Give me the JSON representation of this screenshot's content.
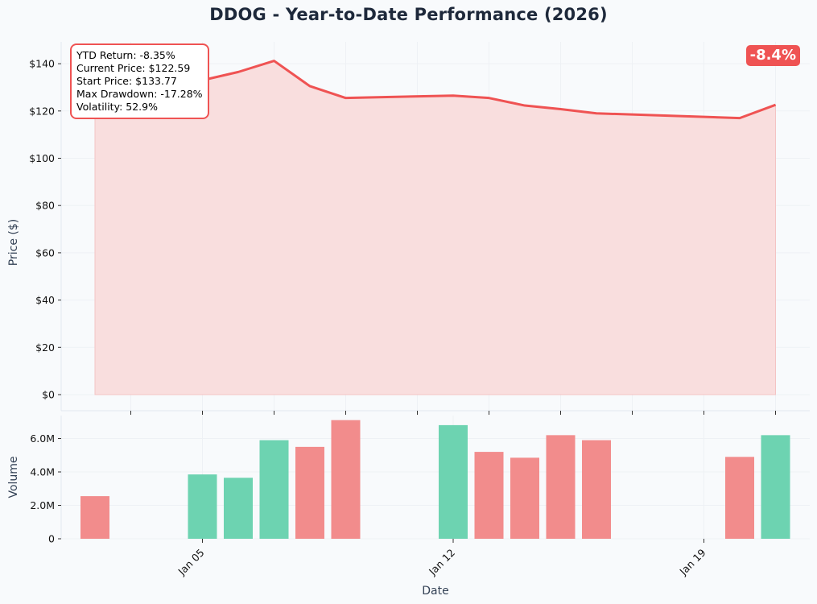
{
  "title": "DDOG - Year-to-Date Performance (2026)",
  "badge": "-8.4%",
  "stats": [
    "YTD Return: -8.35%",
    "Current Price: $122.59",
    "Start Price: $133.77",
    "Max Drawdown: -17.28%",
    "Volatility: 52.9%"
  ],
  "colors": {
    "price_line": "#ef5353",
    "price_fill": "#f9dede",
    "volume_up": "#6dd3b1",
    "volume_down": "#f28c8c",
    "title": "#1e293b",
    "background": "#f8fafc"
  },
  "chart_data": [
    {
      "type": "area",
      "name": "price",
      "x": [
        "2026-01-02",
        "2026-01-05",
        "2026-01-06",
        "2026-01-07",
        "2026-01-08",
        "2026-01-09",
        "2026-01-12",
        "2026-01-13",
        "2026-01-14",
        "2026-01-15",
        "2026-01-16",
        "2026-01-20",
        "2026-01-21"
      ],
      "values": [
        133.77,
        133.0,
        136.5,
        141.2,
        130.5,
        125.5,
        126.5,
        125.5,
        122.3,
        120.8,
        119.0,
        117.0,
        122.59
      ],
      "ylabel": "Price ($)",
      "ylim": [
        0,
        148
      ],
      "yticks": [
        0,
        20,
        40,
        60,
        80,
        100,
        120,
        140
      ],
      "ytick_labels": [
        "$0",
        "$20",
        "$40",
        "$60",
        "$80",
        "$100",
        "$120",
        "$140"
      ],
      "grid": true
    },
    {
      "type": "bar",
      "name": "volume",
      "x": [
        "2026-01-02",
        "2026-01-05",
        "2026-01-06",
        "2026-01-07",
        "2026-01-08",
        "2026-01-09",
        "2026-01-12",
        "2026-01-13",
        "2026-01-14",
        "2026-01-15",
        "2026-01-16",
        "2026-01-20",
        "2026-01-21"
      ],
      "values": [
        2.55,
        3.85,
        3.65,
        5.9,
        5.5,
        7.1,
        6.8,
        5.2,
        4.85,
        6.2,
        5.9,
        4.9,
        6.2
      ],
      "direction": [
        "down",
        "up",
        "up",
        "up",
        "down",
        "down",
        "up",
        "down",
        "down",
        "down",
        "down",
        "down",
        "up"
      ],
      "xlabel": "Date",
      "ylabel": "Volume",
      "ylim": [
        0,
        7.5
      ],
      "yticks": [
        0,
        2,
        4,
        6
      ],
      "ytick_labels": [
        "0",
        "2.0M",
        "4.0M",
        "6.0M"
      ],
      "xticks": [
        "2026-01-05",
        "2026-01-12",
        "2026-01-19"
      ],
      "xtick_labels": [
        "Jan 05",
        "Jan 12",
        "Jan 19"
      ],
      "grid": true
    }
  ]
}
